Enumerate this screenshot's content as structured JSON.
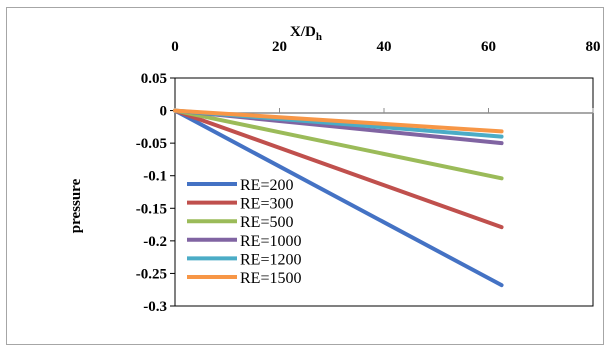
{
  "chart_data": {
    "type": "line",
    "title": "",
    "xlabel": "X/D",
    "xlabel_sub": "h",
    "ylabel": "pressure",
    "x_axis_position": "top",
    "xlim": [
      0,
      80
    ],
    "ylim": [
      -0.3,
      0.05
    ],
    "x_ticks": [
      "0",
      "20",
      "40",
      "60",
      "80"
    ],
    "y_ticks": [
      "0.05",
      "0",
      "-0.05",
      "-0.1",
      "-0.15",
      "-0.2",
      "-0.25",
      "-0.3"
    ],
    "grid": false,
    "legend_position": "left",
    "series": [
      {
        "name": "RE=200",
        "color": "#4472c4",
        "x": [
          0,
          62.5
        ],
        "y": [
          0,
          -0.268
        ]
      },
      {
        "name": "RE=300",
        "color": "#c0504d",
        "x": [
          0,
          62.5
        ],
        "y": [
          0,
          -0.179
        ]
      },
      {
        "name": "RE=500",
        "color": "#9bbb59",
        "x": [
          0,
          62.5
        ],
        "y": [
          0,
          -0.104
        ]
      },
      {
        "name": "RE=1000",
        "color": "#8064a2",
        "x": [
          0,
          62.5
        ],
        "y": [
          0,
          -0.05
        ]
      },
      {
        "name": "RE=1200",
        "color": "#4bacc6",
        "x": [
          0,
          62.5
        ],
        "y": [
          0,
          -0.04
        ]
      },
      {
        "name": "RE=1500",
        "color": "#f79646",
        "x": [
          0,
          62.5
        ],
        "y": [
          0,
          -0.032
        ]
      }
    ]
  }
}
